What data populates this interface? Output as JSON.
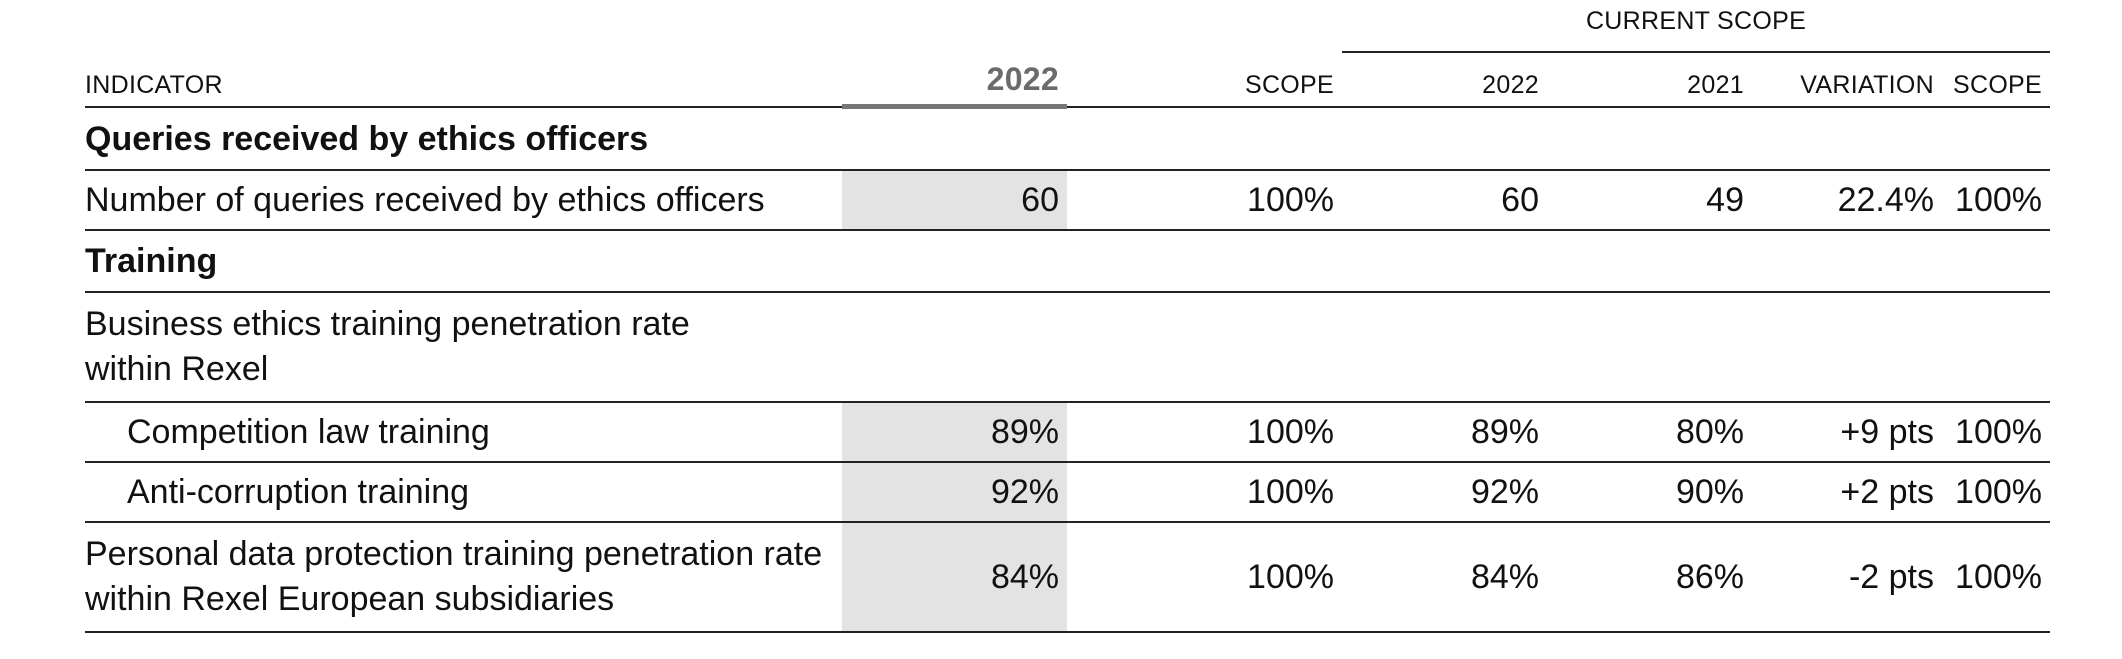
{
  "table": {
    "group_header": "CURRENT SCOPE",
    "columns": {
      "indicator": "INDICATOR",
      "year_highlight": "2022",
      "scope": "SCOPE",
      "cur_2022": "2022",
      "cur_2021": "2021",
      "variation": "VARIATION",
      "cur_scope": "SCOPE"
    },
    "sections": [
      {
        "title": "Queries received by ethics officers",
        "rows": [
          {
            "indicator": "Number of queries received by ethics officers",
            "y2022": "60",
            "scope": "100%",
            "cur2022": "60",
            "cur2021": "49",
            "variation": "22.4%",
            "cur_scope": "100%"
          }
        ]
      },
      {
        "title": "Training",
        "rows": [
          {
            "indicator": "Business ethics training penetration rate within Rexel"
          },
          {
            "indicator": "Competition law training",
            "y2022": "89%",
            "scope": "100%",
            "cur2022": "89%",
            "cur2021": "80%",
            "variation": "+9 pts",
            "cur_scope": "100%"
          },
          {
            "indicator": "Anti-corruption training",
            "y2022": "92%",
            "scope": "100%",
            "cur2022": "92%",
            "cur2021": "90%",
            "variation": "+2 pts",
            "cur_scope": "100%"
          },
          {
            "indicator": "Personal data protection training penetration rate within Rexel European subsidiaries",
            "y2022": "84%",
            "scope": "100%",
            "cur2022": "84%",
            "cur2021": "86%",
            "variation": "-2 pts",
            "cur_scope": "100%"
          }
        ]
      }
    ]
  }
}
